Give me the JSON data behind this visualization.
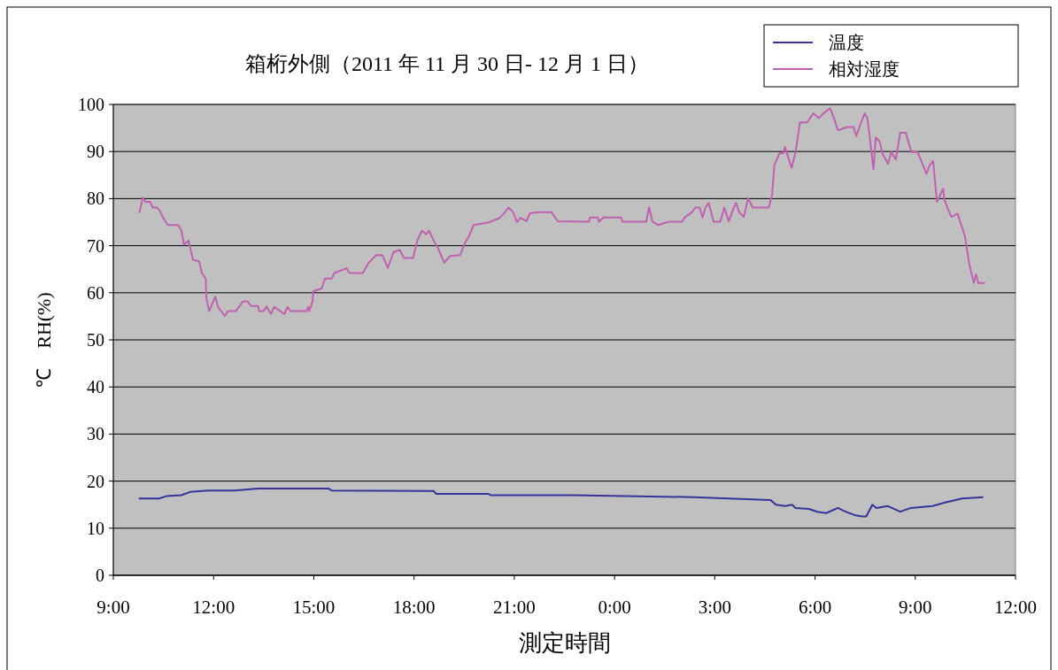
{
  "chart_data": {
    "type": "line",
    "title": "箱桁外側（2011 年 11 月 30 日- 12 月 1 日）",
    "xlabel": "測定時間",
    "ylabel": "℃　RH(%)",
    "xlim": [
      "2011-11-30T09:00",
      "2011-12-01T12:00"
    ],
    "xticks": [
      {
        "value": "2011-11-30T09:00",
        "label": "9:00"
      },
      {
        "value": "2011-11-30T12:00",
        "label": "12:00"
      },
      {
        "value": "2011-11-30T15:00",
        "label": "15:00"
      },
      {
        "value": "2011-11-30T18:00",
        "label": "18:00"
      },
      {
        "value": "2011-11-30T21:00",
        "label": "21:00"
      },
      {
        "value": "2011-12-01T00:00",
        "label": "0:00"
      },
      {
        "value": "2011-12-01T03:00",
        "label": "3:00"
      },
      {
        "value": "2011-12-01T06:00",
        "label": "6:00"
      },
      {
        "value": "2011-12-01T09:00",
        "label": "9:00"
      },
      {
        "value": "2011-12-01T12:00",
        "label": "12:00"
      }
    ],
    "ylim": [
      0,
      100
    ],
    "yticks": [
      0,
      10,
      20,
      30,
      40,
      50,
      60,
      70,
      80,
      90,
      100
    ],
    "grid": "y",
    "legend": "top right",
    "series": [
      {
        "name": "温度",
        "color": "#333399",
        "x": [
          "2011-11-30T09:47",
          "2011-11-30T10:22",
          "2011-11-30T10:35",
          "2011-11-30T11:02",
          "2011-11-30T11:18",
          "2011-11-30T11:50",
          "2011-11-30T12:37",
          "2011-11-30T13:20",
          "2011-11-30T15:27",
          "2011-11-30T15:32",
          "2011-11-30T18:35",
          "2011-11-30T18:40",
          "2011-11-30T20:13",
          "2011-11-30T20:18",
          "2011-11-30T22:47",
          "2011-12-01T02:22",
          "2011-12-01T04:40",
          "2011-12-01T04:50",
          "2011-12-01T05:06",
          "2011-12-01T05:19",
          "2011-12-01T05:25",
          "2011-12-01T05:49",
          "2011-12-01T06:04",
          "2011-12-01T06:20",
          "2011-12-01T06:41",
          "2011-12-01T06:55",
          "2011-12-01T07:11",
          "2011-12-01T07:24",
          "2011-12-01T07:32",
          "2011-12-01T07:43",
          "2011-12-01T07:50",
          "2011-12-01T08:11",
          "2011-12-01T08:33",
          "2011-12-01T08:52",
          "2011-12-01T09:31",
          "2011-12-01T09:52",
          "2011-12-01T10:24",
          "2011-12-01T11:01"
        ],
        "values": [
          16.3,
          16.3,
          16.8,
          17.0,
          17.7,
          18.0,
          18.0,
          18.4,
          18.4,
          18.0,
          17.9,
          17.3,
          17.3,
          17.0,
          17.0,
          16.6,
          16.0,
          15.0,
          14.7,
          15.0,
          14.3,
          14.1,
          13.5,
          13.2,
          14.3,
          13.5,
          12.8,
          12.5,
          12.5,
          15.0,
          14.3,
          14.7,
          13.5,
          14.3,
          14.7,
          15.4,
          16.3,
          16.6
        ]
      },
      {
        "name": "相対湿度",
        "color": "#c060b0",
        "x": [
          "2011-11-30T09:47",
          "2011-11-30T09:53",
          "2011-11-30T09:58",
          "2011-11-30T10:06",
          "2011-11-30T10:11",
          "2011-11-30T10:19",
          "2011-11-30T10:25",
          "2011-11-30T10:30",
          "2011-11-30T10:38",
          "2011-11-30T10:56",
          "2011-11-30T11:02",
          "2011-11-30T11:07",
          "2011-11-30T11:15",
          "2011-11-30T11:23",
          "2011-11-30T11:34",
          "2011-11-30T11:39",
          "2011-11-30T11:46",
          "2011-11-30T11:47",
          "2011-11-30T11:52",
          "2011-11-30T12:03",
          "2011-11-30T12:08",
          "2011-11-30T12:20",
          "2011-11-30T12:26",
          "2011-11-30T12:40",
          "2011-11-30T12:53",
          "2011-11-30T13:01",
          "2011-11-30T13:07",
          "2011-11-30T13:20",
          "2011-11-30T13:22",
          "2011-11-30T13:30",
          "2011-11-30T13:35",
          "2011-11-30T13:43",
          "2011-11-30T13:49",
          "2011-11-30T14:07",
          "2011-11-30T14:13",
          "2011-11-30T14:18",
          "2011-11-30T14:47",
          "2011-11-30T14:50",
          "2011-11-30T14:52",
          "2011-11-30T14:58",
          "2011-11-30T14:59",
          "2011-11-30T15:14",
          "2011-11-30T15:20",
          "2011-11-30T15:32",
          "2011-11-30T15:37",
          "2011-11-30T15:59",
          "2011-11-30T16:04",
          "2011-11-30T16:28",
          "2011-11-30T16:38",
          "2011-11-30T16:52",
          "2011-11-30T17:03",
          "2011-11-30T17:13",
          "2011-11-30T17:23",
          "2011-11-30T17:34",
          "2011-11-30T17:42",
          "2011-11-30T17:58",
          "2011-11-30T18:06",
          "2011-11-30T18:14",
          "2011-11-30T18:22",
          "2011-11-30T18:27",
          "2011-11-30T18:35",
          "2011-11-30T18:43",
          "2011-11-30T18:54",
          "2011-11-30T19:05",
          "2011-11-30T19:23",
          "2011-11-30T19:31",
          "2011-11-30T19:39",
          "2011-11-30T19:47",
          "2011-11-30T20:13",
          "2011-11-30T20:34",
          "2011-11-30T20:43",
          "2011-11-30T20:50",
          "2011-11-30T20:58",
          "2011-11-30T21:05",
          "2011-11-30T21:11",
          "2011-11-30T21:22",
          "2011-11-30T21:28",
          "2011-11-30T21:43",
          "2011-11-30T22:07",
          "2011-11-30T22:18",
          "2011-11-30T23:14",
          "2011-11-30T23:16",
          "2011-11-30T23:30",
          "2011-11-30T23:32",
          "2011-11-30T23:40",
          "2011-12-01T00:12",
          "2011-12-01T00:14",
          "2011-12-01T00:57",
          "2011-12-01T01:02",
          "2011-12-01T01:08",
          "2011-12-01T01:18",
          "2011-12-01T01:37",
          "2011-12-01T02:01",
          "2011-12-01T02:06",
          "2011-12-01T02:19",
          "2011-12-01T02:25",
          "2011-12-01T02:33",
          "2011-12-01T02:38",
          "2011-12-01T02:43",
          "2011-12-01T02:49",
          "2011-12-01T02:58",
          "2011-12-01T03:10",
          "2011-12-01T03:17",
          "2011-12-01T03:25",
          "2011-12-01T03:34",
          "2011-12-01T03:38",
          "2011-12-01T03:44",
          "2011-12-01T03:52",
          "2011-12-01T04:00",
          "2011-12-01T04:08",
          "2011-12-01T04:37",
          "2011-12-01T04:43",
          "2011-12-01T04:47",
          "2011-12-01T04:56",
          "2011-12-01T05:03",
          "2011-12-01T05:06",
          "2011-12-01T05:18",
          "2011-12-01T05:25",
          "2011-12-01T05:33",
          "2011-12-01T05:46",
          "2011-12-01T05:57",
          "2011-12-01T06:07",
          "2011-12-01T06:15",
          "2011-12-01T06:27",
          "2011-12-01T06:34",
          "2011-12-01T06:41",
          "2011-12-01T06:58",
          "2011-12-01T07:09",
          "2011-12-01T07:14",
          "2011-12-01T07:23",
          "2011-12-01T07:29",
          "2011-12-01T07:34",
          "2011-12-01T07:38",
          "2011-12-01T07:45",
          "2011-12-01T07:49",
          "2011-12-01T07:56",
          "2011-12-01T08:01",
          "2011-12-01T08:11",
          "2011-12-01T08:17",
          "2011-12-01T08:25",
          "2011-12-01T08:33",
          "2011-12-01T08:43",
          "2011-12-01T08:53",
          "2011-12-01T09:04",
          "2011-12-01T09:15",
          "2011-12-01T09:20",
          "2011-12-01T09:26",
          "2011-12-01T09:32",
          "2011-12-01T09:39",
          "2011-12-01T09:50",
          "2011-12-01T09:52",
          "2011-12-01T10:00",
          "2011-12-01T10:05",
          "2011-12-01T10:16",
          "2011-12-01T10:24",
          "2011-12-01T10:29",
          "2011-12-01T10:37",
          "2011-12-01T10:45",
          "2011-12-01T10:49",
          "2011-12-01T10:53",
          "2011-12-01T11:04"
        ],
        "values": [
          77.1,
          80.2,
          79.3,
          79.3,
          78.1,
          78.1,
          77.1,
          75.8,
          74.4,
          74.4,
          73.3,
          70.2,
          71.1,
          67.0,
          66.7,
          64.2,
          63.0,
          58.9,
          56.1,
          59.2,
          57.0,
          55.1,
          56.1,
          56.1,
          58.2,
          58.2,
          57.2,
          57.2,
          56.1,
          56.1,
          57.1,
          55.5,
          57.0,
          55.5,
          57.0,
          56.1,
          56.1,
          57.0,
          56.1,
          58.3,
          60.3,
          60.9,
          63.0,
          63.0,
          64.2,
          65.2,
          64.2,
          64.2,
          66.3,
          68.0,
          68.0,
          65.3,
          68.6,
          69.1,
          67.4,
          67.4,
          71.1,
          73.2,
          72.4,
          73.2,
          71.1,
          69.5,
          66.4,
          67.8,
          68.0,
          70.5,
          72.1,
          74.4,
          74.9,
          75.9,
          77.1,
          78.1,
          77.1,
          75.0,
          75.9,
          75.2,
          76.9,
          77.1,
          77.1,
          75.2,
          75.1,
          76.0,
          76.0,
          75.1,
          76.0,
          76.0,
          75.1,
          75.1,
          78.2,
          75.1,
          74.4,
          75.1,
          75.1,
          76.0,
          77.1,
          78.1,
          78.1,
          76.0,
          78.0,
          79.1,
          75.1,
          75.1,
          78.1,
          75.2,
          78.0,
          79.1,
          77.1,
          76.1,
          80.1,
          78.1,
          78.1,
          80.8,
          87.1,
          89.6,
          89.6,
          91.0,
          86.5,
          89.9,
          96.2,
          96.2,
          98.1,
          97.1,
          98.1,
          99.2,
          97.1,
          94.5,
          95.2,
          95.2,
          93.3,
          96.2,
          98.1,
          97.1,
          93.3,
          86.2,
          93.0,
          92.1,
          89.6,
          87.4,
          89.9,
          88.3,
          94.0,
          94.0,
          89.9,
          89.9,
          86.8,
          85.2,
          87.1,
          88.0,
          79.3,
          82.1,
          79.9,
          77.4,
          76.1,
          76.8,
          73.9,
          72.1,
          66.1,
          62.1,
          63.9,
          62.1,
          62.1
        ]
      }
    ]
  }
}
